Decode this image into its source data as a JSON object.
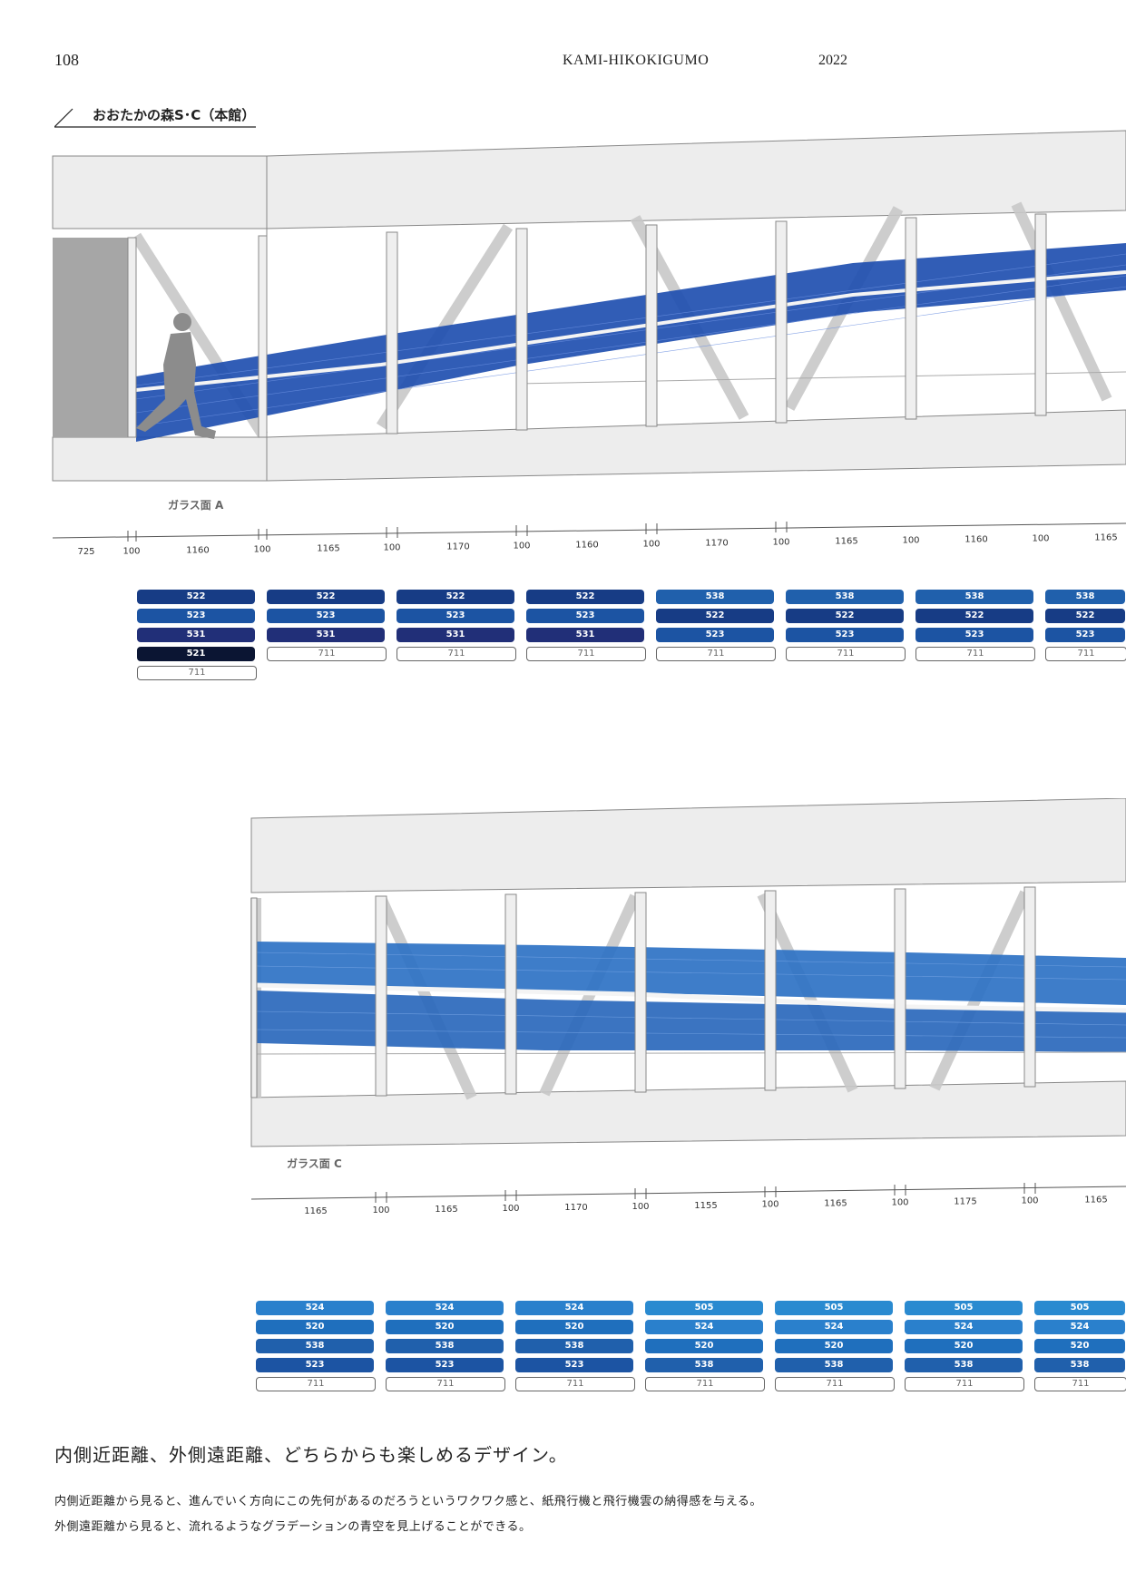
{
  "header": {
    "page_number": "108",
    "title": "KAMI-HIKOKIGUMO",
    "year": "2022"
  },
  "section_label": "おおたかの森S･C（本館）",
  "elevation_a": {
    "glass_label": "ガラス面 A",
    "dimensions": [
      "725",
      "100",
      "1160",
      "100",
      "1165",
      "100",
      "1170",
      "100",
      "1160",
      "100",
      "1170",
      "100",
      "1165",
      "100",
      "1160",
      "100",
      "1165"
    ],
    "color_groups": [
      [
        "522",
        "523",
        "531",
        "521",
        "711"
      ],
      [
        "522",
        "523",
        "531",
        "711"
      ],
      [
        "522",
        "523",
        "531",
        "711"
      ],
      [
        "522",
        "523",
        "531",
        "711"
      ],
      [
        "538",
        "522",
        "523",
        "711"
      ],
      [
        "538",
        "522",
        "523",
        "711"
      ],
      [
        "538",
        "522",
        "523",
        "711"
      ],
      [
        "538",
        "522",
        "523",
        "711"
      ]
    ]
  },
  "elevation_c": {
    "glass_label": "ガラス面 C",
    "dimensions": [
      "1165",
      "100",
      "1165",
      "100",
      "1170",
      "100",
      "1155",
      "100",
      "1165",
      "100",
      "1175",
      "100",
      "1165"
    ],
    "color_groups": [
      [
        "524",
        "520",
        "538",
        "523",
        "711"
      ],
      [
        "524",
        "520",
        "538",
        "523",
        "711"
      ],
      [
        "524",
        "520",
        "538",
        "523",
        "711"
      ],
      [
        "505",
        "524",
        "520",
        "538",
        "711"
      ],
      [
        "505",
        "524",
        "520",
        "538",
        "711"
      ],
      [
        "505",
        "524",
        "520",
        "538",
        "711"
      ],
      [
        "505",
        "524",
        "520",
        "538",
        "711"
      ]
    ]
  },
  "swatch_colors": {
    "505": "#2a8ad0",
    "520": "#1f6fbd",
    "521": "#0b1533",
    "522": "#173c85",
    "523": "#1c54a3",
    "524": "#2a80cc",
    "531": "#212f78",
    "538": "#2060ac",
    "711": "#ffffff"
  },
  "tagline": "内側近距離、外側遠距離、どちらからも楽しめるデザイン。",
  "body": [
    "内側近距離から見ると、進んでいく方向にこの先何があるのだろうというワクワク感と、紙飛行機と飛行機雲の納得感を与える。",
    "外側遠距離から見ると、流れるようなグラデーションの青空を見上げることができる。"
  ]
}
